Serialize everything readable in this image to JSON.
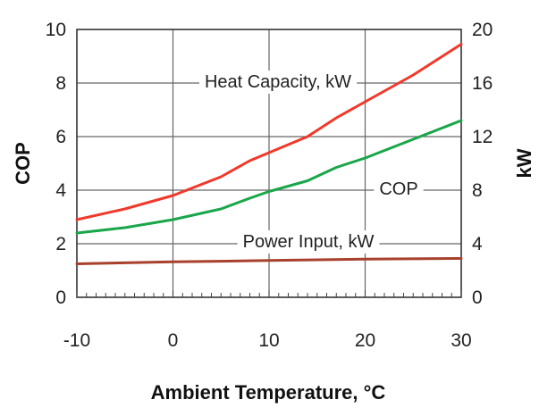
{
  "chart_data": {
    "type": "line",
    "x_axis": {
      "title": "Ambient Temperature, °C",
      "min": -10,
      "max": 30,
      "ticks": [
        -10,
        0,
        10,
        20,
        30
      ]
    },
    "y_left": {
      "title": "COP",
      "min": 0,
      "max": 10,
      "ticks": [
        0,
        2,
        4,
        6,
        8,
        10
      ]
    },
    "y_right": {
      "title": "kW",
      "min": 0,
      "max": 20,
      "ticks": [
        0,
        4,
        8,
        12,
        16,
        20
      ]
    },
    "grid": true,
    "series": [
      {
        "name": "Heat Capacity, kW",
        "axis": "right",
        "color": "#f0392b",
        "x": [
          -10,
          -5,
          0,
          5,
          8,
          10,
          14,
          17,
          20,
          25,
          30
        ],
        "y": [
          5.8,
          6.6,
          7.6,
          9.0,
          10.2,
          10.8,
          12.0,
          13.4,
          14.6,
          16.6,
          18.9
        ]
      },
      {
        "name": "COP",
        "axis": "left",
        "color": "#1aa64a",
        "x": [
          -10,
          -5,
          0,
          5,
          8,
          10,
          14,
          17,
          20,
          25,
          30
        ],
        "y": [
          2.4,
          2.6,
          2.9,
          3.3,
          3.7,
          3.95,
          4.35,
          4.85,
          5.2,
          5.9,
          6.6
        ]
      },
      {
        "name": "Power Input, kW",
        "axis": "right",
        "color": "#a8402c",
        "x": [
          -10,
          0,
          10,
          20,
          30
        ],
        "y": [
          2.5,
          2.65,
          2.75,
          2.85,
          2.9
        ]
      }
    ],
    "annotations": {
      "heat": "Heat Capacity, kW",
      "cop": "COP",
      "power": "Power Input, kW"
    }
  }
}
